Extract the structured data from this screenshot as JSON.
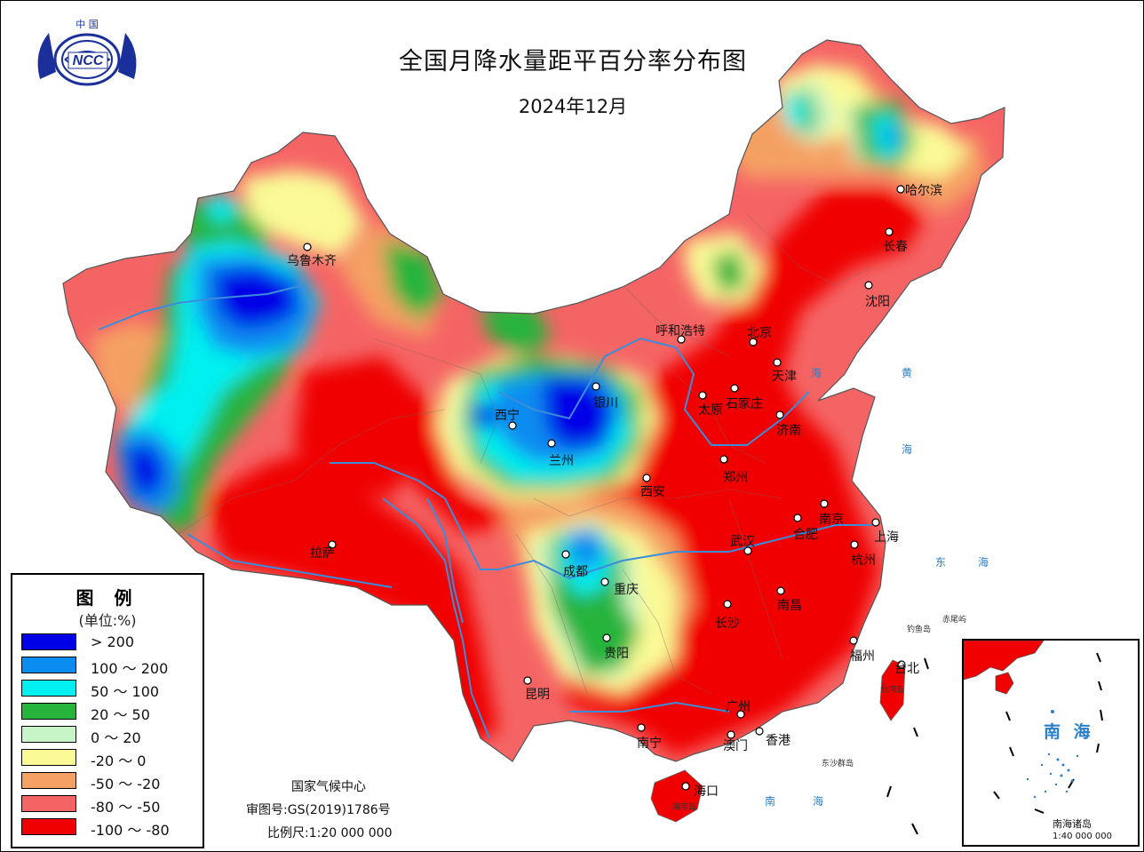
{
  "title": "全国月降水量距平百分率分布图",
  "subtitle": "2024年12月",
  "logo": {
    "top_text": "中 国",
    "center_text": "NCC"
  },
  "colors": {
    "c_gt200": "#0000e6",
    "c_100_200": "#0a8cf0",
    "c_50_100": "#00f0f0",
    "c_20_50": "#28b43c",
    "c_0_20": "#c8f5c8",
    "c_m20_0": "#fafa96",
    "c_m50_m20": "#f5a064",
    "c_m80_m50": "#f56464",
    "c_m100_m80": "#f00000",
    "rivers": "#3c8cdc"
  },
  "legend": {
    "title": "图 例",
    "unit": "(单位:%)",
    "items": [
      {
        "label": "> 200",
        "color": "#0000e6"
      },
      {
        "label": "100 ～ 200",
        "color": "#0a8cf0"
      },
      {
        "label": "50 ～ 100",
        "color": "#00f0f0"
      },
      {
        "label": "20 ～ 50",
        "color": "#28b43c"
      },
      {
        "label": "0 ～ 20",
        "color": "#c8f5c8"
      },
      {
        "label": "-20 ～ 0",
        "color": "#fafa96"
      },
      {
        "label": "-50 ～ -20",
        "color": "#f5a064"
      },
      {
        "label": "-80 ～ -50",
        "color": "#f56464"
      },
      {
        "label": "-100 ～ -80",
        "color": "#f00000"
      }
    ]
  },
  "cities": {
    "harbin": "哈尔滨",
    "changchun": "长春",
    "shenyang": "沈阳",
    "urumqi": "乌鲁木齐",
    "hohhot": "呼和浩特",
    "beijing": "北京",
    "tianjin": "天津",
    "shijiazhuang": "石家庄",
    "taiyuan": "太原",
    "jinan": "济南",
    "yinchuan": "银川",
    "xining": "西宁",
    "lanzhou": "兰州",
    "xian": "西安",
    "zhengzhou": "郑州",
    "nanjing": "南京",
    "hefei": "合肥",
    "shanghai": "上海",
    "wuhan": "武汉",
    "hangzhou": "杭州",
    "lhasa": "拉萨",
    "chengdu": "成都",
    "chongqing": "重庆",
    "changsha": "长沙",
    "nanchang": "南昌",
    "guiyang": "贵阳",
    "fuzhou": "福州",
    "taipei": "台北",
    "kunming": "昆明",
    "guangzhou": "广州",
    "nanning": "南宁",
    "macau": "澳门",
    "hongkong": "香港",
    "haikou": "海口"
  },
  "seas": {
    "huang1": "黄",
    "huang2": "海",
    "bo": "海",
    "dong1": "东",
    "dong2": "海",
    "nan1": "南",
    "nan2": "海"
  },
  "islands": {
    "diaoyu": "钓鱼岛",
    "chiwei": "赤尾屿",
    "dongsha": "东沙群岛",
    "taiwan": "台湾岛",
    "hainan": "海南岛"
  },
  "footer": {
    "org": "国家气候中心",
    "review": "审图号:GS(2019)1786号",
    "scale": "比例尺:1:20 000 000"
  },
  "inset": {
    "sea": "南 海",
    "islands": "南海诸岛",
    "scale": "1:40 000 000"
  }
}
